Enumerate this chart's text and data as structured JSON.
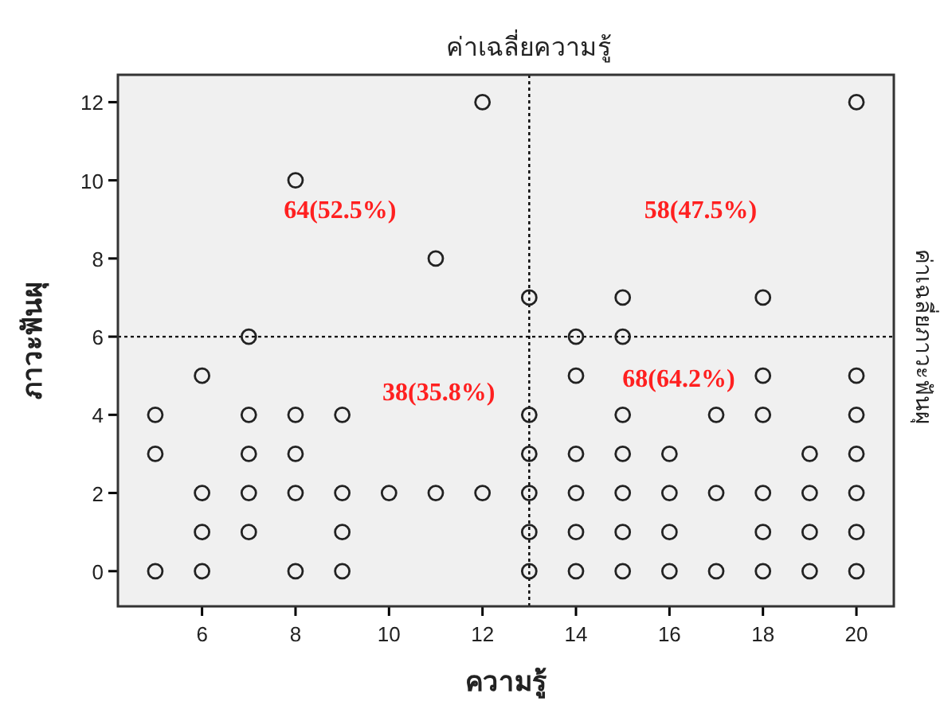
{
  "chart_data": {
    "type": "scatter",
    "xlabel": "ความรู้",
    "ylabel": "ภาวะฟันผุ",
    "xlim": [
      4.2,
      20.8
    ],
    "ylim": [
      -0.9,
      12.7
    ],
    "xticks": [
      6,
      8,
      10,
      12,
      14,
      16,
      18,
      20
    ],
    "yticks": [
      0,
      2,
      4,
      6,
      8,
      10,
      12
    ],
    "grid": false,
    "marker": "circle",
    "series": [
      {
        "color": "#222222",
        "x": [
          5,
          5,
          5,
          6,
          6,
          6,
          6,
          7,
          7,
          7,
          7,
          7,
          8,
          8,
          8,
          8,
          8,
          9,
          9,
          9,
          9,
          10,
          11,
          11,
          12,
          12,
          13,
          13,
          13,
          13,
          13,
          13,
          14,
          14,
          14,
          14,
          14,
          14,
          15,
          15,
          15,
          15,
          15,
          15,
          15,
          16,
          16,
          16,
          16,
          17,
          17,
          17,
          18,
          18,
          18,
          18,
          18,
          18,
          19,
          19,
          19,
          19,
          20,
          20,
          20,
          20,
          20,
          20,
          20
        ],
        "values": [
          0,
          3,
          4,
          0,
          1,
          2,
          5,
          1,
          2,
          3,
          4,
          6,
          0,
          2,
          3,
          4,
          10,
          0,
          1,
          2,
          4,
          2,
          2,
          8,
          2,
          12,
          0,
          1,
          2,
          3,
          4,
          7,
          0,
          1,
          2,
          3,
          5,
          6,
          0,
          1,
          2,
          3,
          4,
          6,
          7,
          0,
          1,
          2,
          3,
          0,
          2,
          4,
          0,
          1,
          2,
          4,
          5,
          7,
          0,
          1,
          2,
          3,
          0,
          1,
          2,
          3,
          4,
          5,
          12
        ]
      }
    ],
    "ref_lines": [
      {
        "axis": "x",
        "value": 13,
        "label": "ค่าเฉลี่ยความรู้",
        "line_style": "dotted",
        "color": "#000000"
      },
      {
        "axis": "y",
        "value": 6,
        "label": "ค่าเฉลี่ยภาวะฟันผุ",
        "line_style": "dotted",
        "color": "#000000"
      }
    ],
    "annotations": [
      "64(52.5%)",
      "58(47.5%)",
      "38(35.8%)",
      "68(64.2%)"
    ]
  }
}
